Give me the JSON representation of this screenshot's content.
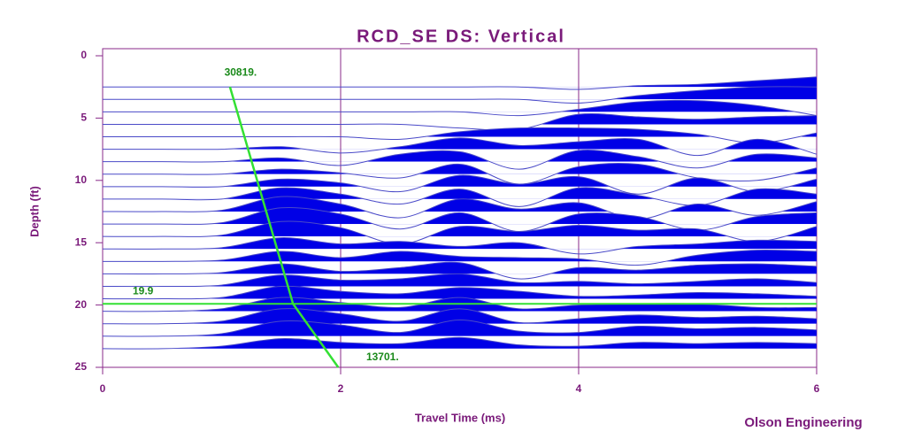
{
  "chart_data": {
    "type": "wiggle",
    "title": "RCD_SE DS: Vertical",
    "x_label": "Travel Time (ms)",
    "y_label": "Depth (ft)",
    "credit": "Olson Engineering",
    "xlim": [
      0,
      6
    ],
    "xticks": [
      0,
      2,
      4,
      6
    ],
    "ylim": [
      0,
      25
    ],
    "yticks": [
      0,
      5,
      10,
      15,
      20,
      25
    ],
    "color": "#0000e6",
    "grid": true,
    "x": [
      0,
      0.5,
      1,
      1.5,
      2,
      2.5,
      3,
      3.5,
      4,
      4.5,
      5,
      5.5,
      6
    ],
    "series": [
      {
        "depth": 2.5,
        "values": [
          0,
          0,
          0,
          0,
          0,
          0,
          0,
          0,
          -0.2,
          0.1,
          0.2,
          0.5,
          0.8
        ]
      },
      {
        "depth": 3.5,
        "values": [
          0,
          0,
          0,
          0,
          0,
          0,
          0,
          0,
          -0.3,
          0.3,
          0.7,
          1.0,
          1.0
        ]
      },
      {
        "depth": 4.5,
        "values": [
          0,
          0,
          0,
          0,
          0,
          0,
          0,
          -0.3,
          0.2,
          0.8,
          0.9,
          0.5,
          -0.3
        ]
      },
      {
        "depth": 5.5,
        "values": [
          0,
          0,
          0,
          0,
          0,
          0,
          -0.3,
          -0.4,
          0.8,
          0.6,
          0.4,
          0.6,
          0.7
        ]
      },
      {
        "depth": 6.5,
        "values": [
          0,
          0,
          0,
          0,
          0,
          -0.2,
          0.4,
          0.7,
          0.7,
          0.6,
          0.2,
          -0.5,
          0.3
        ]
      },
      {
        "depth": 7.5,
        "values": [
          0,
          0,
          0,
          0.2,
          -0.3,
          0.2,
          0.9,
          0.3,
          0.6,
          0.8,
          -0.5,
          0.8,
          -0.4
        ]
      },
      {
        "depth": 8.5,
        "values": [
          0,
          0,
          0,
          0.3,
          -0.3,
          0.6,
          0.8,
          -0.6,
          0.9,
          0.4,
          -0.5,
          0.6,
          0.3
        ]
      },
      {
        "depth": 9.5,
        "values": [
          0,
          0,
          0,
          0.4,
          0.1,
          -0.3,
          0.8,
          -0.8,
          0.6,
          0.8,
          -0.3,
          -0.5,
          0.5
        ]
      },
      {
        "depth": 10.5,
        "values": [
          0,
          0,
          0,
          0.6,
          0.3,
          -0.4,
          0.9,
          0.2,
          0.8,
          -0.6,
          0.7,
          -0.4,
          0.6
        ]
      },
      {
        "depth": 11.5,
        "values": [
          0,
          0,
          0,
          0.9,
          0.4,
          -0.4,
          0.8,
          -0.6,
          0.9,
          0.3,
          -0.5,
          0.8,
          0.4
        ]
      },
      {
        "depth": 12.5,
        "values": [
          0,
          0,
          0.1,
          1.2,
          0.6,
          -0.5,
          1.0,
          0.2,
          0.7,
          -0.6,
          0.6,
          -0.3,
          0.8
        ]
      },
      {
        "depth": 13.5,
        "values": [
          0,
          0,
          0.1,
          1.3,
          0.8,
          -0.4,
          0.9,
          -0.6,
          0.8,
          0.6,
          -0.5,
          0.6,
          0.9
        ]
      },
      {
        "depth": 14.5,
        "values": [
          0,
          0,
          0.1,
          1.2,
          0.7,
          -0.6,
          0.8,
          0.4,
          0.9,
          0.5,
          0.6,
          -0.4,
          0.8
        ]
      },
      {
        "depth": 15.5,
        "values": [
          0,
          0,
          0.1,
          0.9,
          0.4,
          0.6,
          0.2,
          0.5,
          -0.4,
          0.2,
          0.4,
          0.7,
          0.6
        ]
      },
      {
        "depth": 16.5,
        "values": [
          0,
          0,
          0.1,
          0.8,
          0.3,
          0.8,
          0.4,
          0.3,
          0.2,
          -0.3,
          0.5,
          0.9,
          0.8
        ]
      },
      {
        "depth": 17.5,
        "values": [
          0,
          0,
          0.1,
          0.8,
          0.2,
          0.5,
          0.9,
          -0.4,
          0.5,
          0.3,
          0.7,
          0.8,
          0.6
        ]
      },
      {
        "depth": 18.5,
        "values": [
          0,
          0,
          0.1,
          0.9,
          0.5,
          0.6,
          1.0,
          0.3,
          0.4,
          0.2,
          0.4,
          0.6,
          0.3
        ]
      },
      {
        "depth": 19.5,
        "values": [
          0,
          0,
          0.1,
          1.0,
          0.6,
          0.4,
          0.9,
          0.6,
          0.2,
          0.3,
          0.5,
          0.4,
          0.2
        ]
      },
      {
        "depth": 20.5,
        "values": [
          0,
          0,
          0.2,
          1.1,
          0.7,
          0.3,
          1.1,
          0.2,
          0.5,
          0.6,
          0.6,
          0.3,
          0.3
        ]
      },
      {
        "depth": 21.5,
        "values": [
          0,
          0,
          0.2,
          1.2,
          0.8,
          0.2,
          1.2,
          0.1,
          0.4,
          0.7,
          0.5,
          0.6,
          0.4
        ]
      },
      {
        "depth": 22.5,
        "values": [
          0,
          0,
          0.2,
          1.2,
          0.9,
          0.3,
          1.3,
          0.4,
          0.3,
          0.8,
          0.6,
          0.7,
          0.5
        ]
      },
      {
        "depth": 23.5,
        "values": [
          0,
          0,
          0.2,
          0.8,
          0.5,
          0.4,
          0.9,
          0.3,
          0.2,
          0.5,
          0.4,
          0.5,
          0.4
        ]
      }
    ],
    "velocity_line": {
      "x": [
        1.07,
        1.6,
        1.98
      ],
      "y": [
        2.5,
        19.9,
        25
      ],
      "color": "#33e033"
    },
    "velocities": [
      30819,
      13701
    ],
    "velocity_labels": [
      "30819.",
      "13701."
    ],
    "picked_depth": 19.9
  }
}
